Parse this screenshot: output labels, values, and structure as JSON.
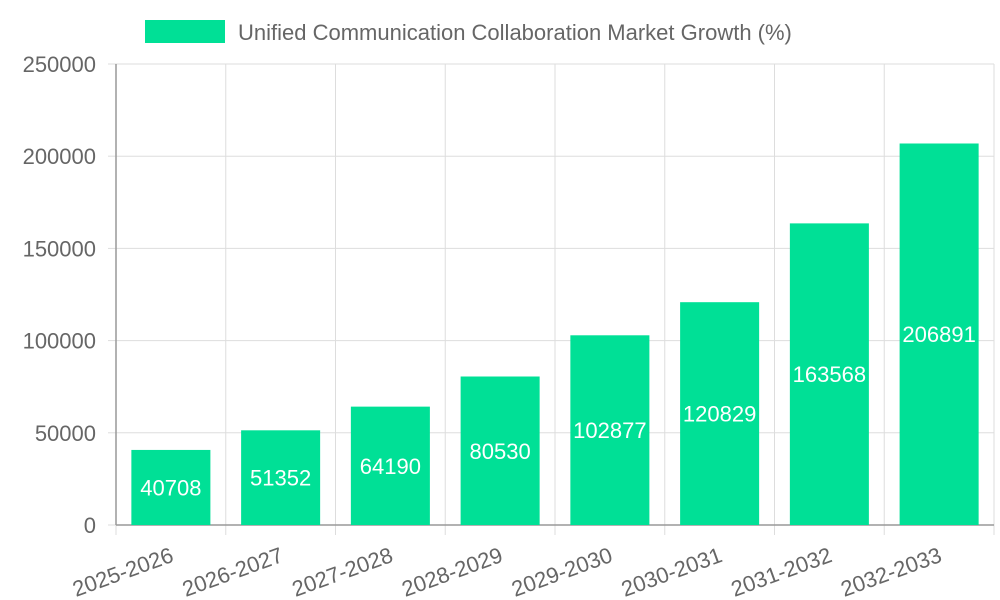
{
  "chart_data": {
    "type": "bar",
    "title": "",
    "xlabel": "",
    "ylabel": "",
    "categories": [
      "2025-2026",
      "2026-2027",
      "2027-2028",
      "2028-2029",
      "2029-2030",
      "2030-2031",
      "2031-2032",
      "2032-2033"
    ],
    "series": [
      {
        "name": "Unified Communication Collaboration Market Growth (%)",
        "values": [
          40708,
          51352,
          64190,
          80530,
          102877,
          120829,
          163568,
          206891
        ],
        "color": "#00e096"
      }
    ],
    "ylim": [
      0,
      250000
    ],
    "yticks": [
      "0",
      "50000",
      "100000",
      "150000",
      "200000",
      "250000"
    ],
    "grid": true,
    "legend": "top-center",
    "data_labels": true,
    "data_label_color": "#ffffff",
    "x_tick_rotation_deg": -20
  }
}
